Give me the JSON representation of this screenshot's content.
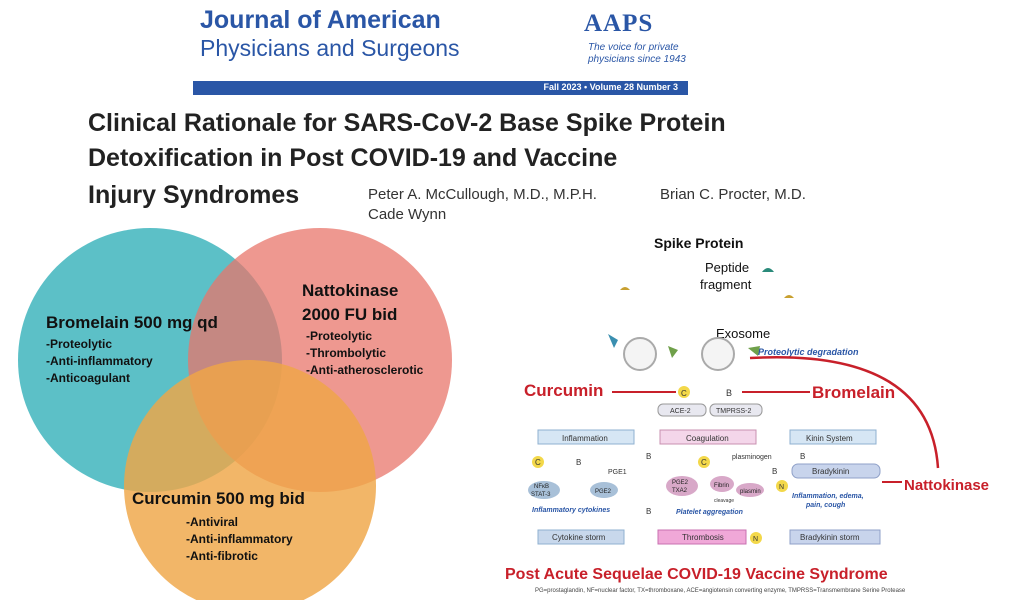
{
  "header": {
    "journal_line1": "Journal of American",
    "journal_line2": "Physicians and Surgeons",
    "logo": "AAPS",
    "tagline": "The voice for private physicians since 1943",
    "issue": "Fall 2023 • Volume 28 Number 3"
  },
  "article": {
    "title_line1": "Clinical Rationale for SARS-CoV-2 Base Spike Protein",
    "title_line2": "Detoxification in Post COVID-19 and Vaccine",
    "title_line3": "Injury Syndromes",
    "author1": "Peter A. McCullough, M.D., M.P.H.",
    "author2": "Brian C. Procter, M.D.",
    "author3": "Cade Wynn"
  },
  "venn": {
    "bromelain": {
      "title": "Bromelain 500 mg qd",
      "items": [
        "-Proteolytic",
        "-Anti-inflammatory",
        "-Anticoagulant"
      ],
      "color": "#3fb5bd"
    },
    "nattokinase": {
      "title_line1": "Nattokinase",
      "title_line2": "2000 FU bid",
      "items": [
        "-Proteolytic",
        "-Thrombolytic",
        "-Anti-atherosclerotic"
      ],
      "color": "#e8766b"
    },
    "curcumin": {
      "title": "Curcumin 500 mg bid",
      "items": [
        "-Antiviral",
        "-Anti-inflammatory",
        "-Anti-fibrotic"
      ],
      "color": "#efa647"
    }
  },
  "diagram": {
    "spike_protein": "Spike Protein",
    "peptide_line1": "Peptide",
    "peptide_line2": "fragment",
    "exosome": "Exosome",
    "proteolytic": "Proteolytic degradation",
    "curcumin": "Curcumin",
    "bromelain": "Bromelain",
    "nattokinase": "Nattokinase",
    "ace2": "ACE-2",
    "tmprss2": "TMPRSS-2",
    "inflammation": "Inflammation",
    "coagulation": "Coagulation",
    "kinin": "Kinin System",
    "pge1": "PGE1",
    "nfkb": "NFκB",
    "stat3": "STAT-3",
    "pge2": "PGE2",
    "pge2b": "PGE2",
    "txa2": "TXA2",
    "plasminogen": "plasminogen",
    "fibrin": "Fibrin",
    "plasmin": "plasmin",
    "cleavage": "cleavage",
    "bradykinin": "Bradykinin",
    "inflam_effects_1": "Inflammation, edema,",
    "inflam_effects_2": "pain, cough",
    "inflam_cytokines": "Inflammatory cytokines",
    "platelet": "Platelet aggregation",
    "cytokine_storm": "Cytokine storm",
    "thrombosis": "Thrombosis",
    "bradykinin_storm": "Bradykinin storm",
    "c": "C",
    "b": "B",
    "n": "N",
    "bottom_title": "Post Acute Sequelae COVID-19 Vaccine Syndrome",
    "footnote": "PG=prostaglandin, NF=nuclear factor, TX=thromboxane, ACE=angiotensin converting enzyme, TMPRSS=Transmembrane Serine Protease"
  }
}
